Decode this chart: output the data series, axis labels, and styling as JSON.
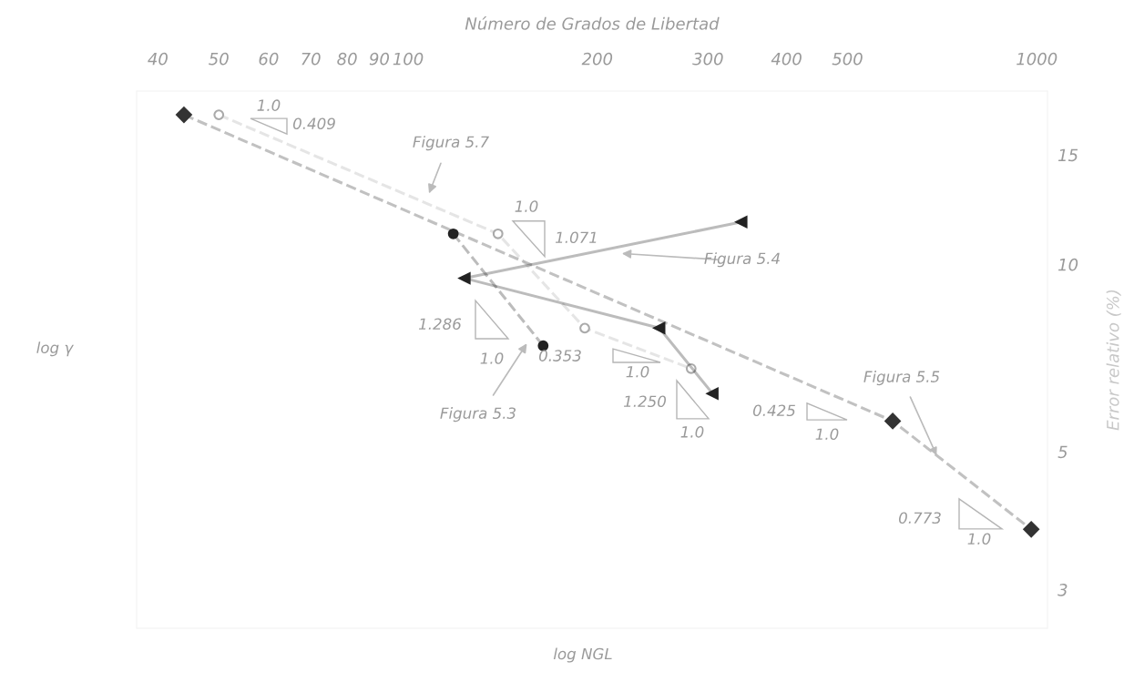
{
  "chart_data": {
    "type": "line",
    "xlabel": "Número de Grados de Libertad",
    "ylabel": "Error relativo (%)",
    "log": "xy",
    "xlim": [
      37,
      1040
    ],
    "xticks": [
      40,
      50,
      60,
      70,
      80,
      90,
      100,
      200,
      300,
      400,
      500,
      1000
    ],
    "ylim": [
      2.6,
      19
    ],
    "yticks": [
      3,
      5,
      10,
      15
    ],
    "series": [
      {
        "x": [
          44,
          590,
          980
        ],
        "values": [
          17.4,
          5.6,
          3.75
        ],
        "color": "#333333",
        "marker": "diamond",
        "line_style": "dashed"
      },
      {
        "x": [
          50,
          139,
          191,
          282
        ],
        "values": [
          17.4,
          11.2,
          7.9,
          6.8
        ],
        "color": "#aaaaaa",
        "marker": "circle",
        "line_style": "dashed"
      },
      {
        "x": [
          118,
          164
        ],
        "values": [
          11.2,
          7.4
        ],
        "color": "#222222",
        "marker": "circle",
        "line_style": "dashed"
      },
      {
        "x": [
          339,
          123,
          251,
          305
        ],
        "values": [
          11.7,
          9.5,
          7.9,
          6.2
        ],
        "color": "#222222",
        "marker": "triangle",
        "line_style": "solid"
      }
    ],
    "annotations": [
      "1.0",
      "0.409",
      "1.0",
      "1.071",
      "1.286",
      "1.0",
      "0.353",
      "1.0",
      "1.250",
      "1.0",
      "0.425",
      "1.0",
      "0.773",
      "1.0",
      "Figura 5.7",
      "Figura 5.4",
      "Figura 5.3",
      {
        "text": "Figura 5.5",
        "x": 693,
        "y": 4.93
      },
      "log γ",
      "log NGL"
    ]
  }
}
